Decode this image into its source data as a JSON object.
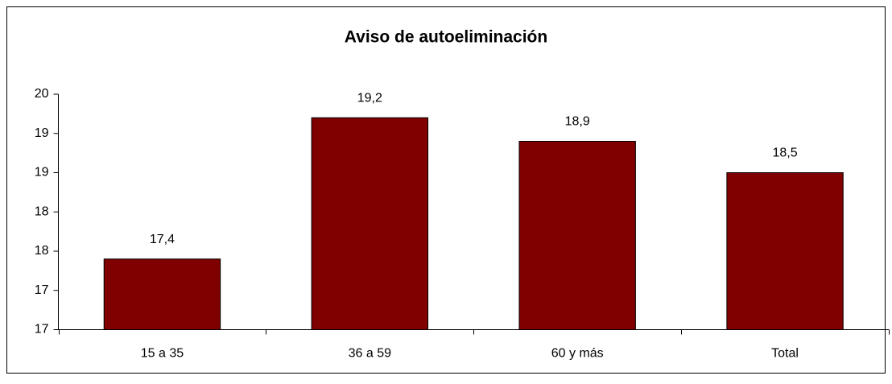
{
  "chart_data": {
    "type": "bar",
    "title": "Aviso de autoeliminación",
    "categories": [
      "15 a 35",
      "36 a 59",
      "60 y más",
      "Total"
    ],
    "values": [
      17.4,
      19.2,
      18.9,
      18.5
    ],
    "value_labels": [
      "17,4",
      "19,2",
      "18,9",
      "18,5"
    ],
    "color": "#800000",
    "ylim": [
      16.5,
      19.5
    ],
    "yticks": [
      {
        "value": 16.5,
        "label": "17"
      },
      17,
      {
        "value": 17.5,
        "label": "18"
      },
      18,
      {
        "value": 18.5,
        "label": "19"
      },
      19,
      {
        "value": 19.5,
        "label": "20"
      }
    ],
    "grid": false
  }
}
